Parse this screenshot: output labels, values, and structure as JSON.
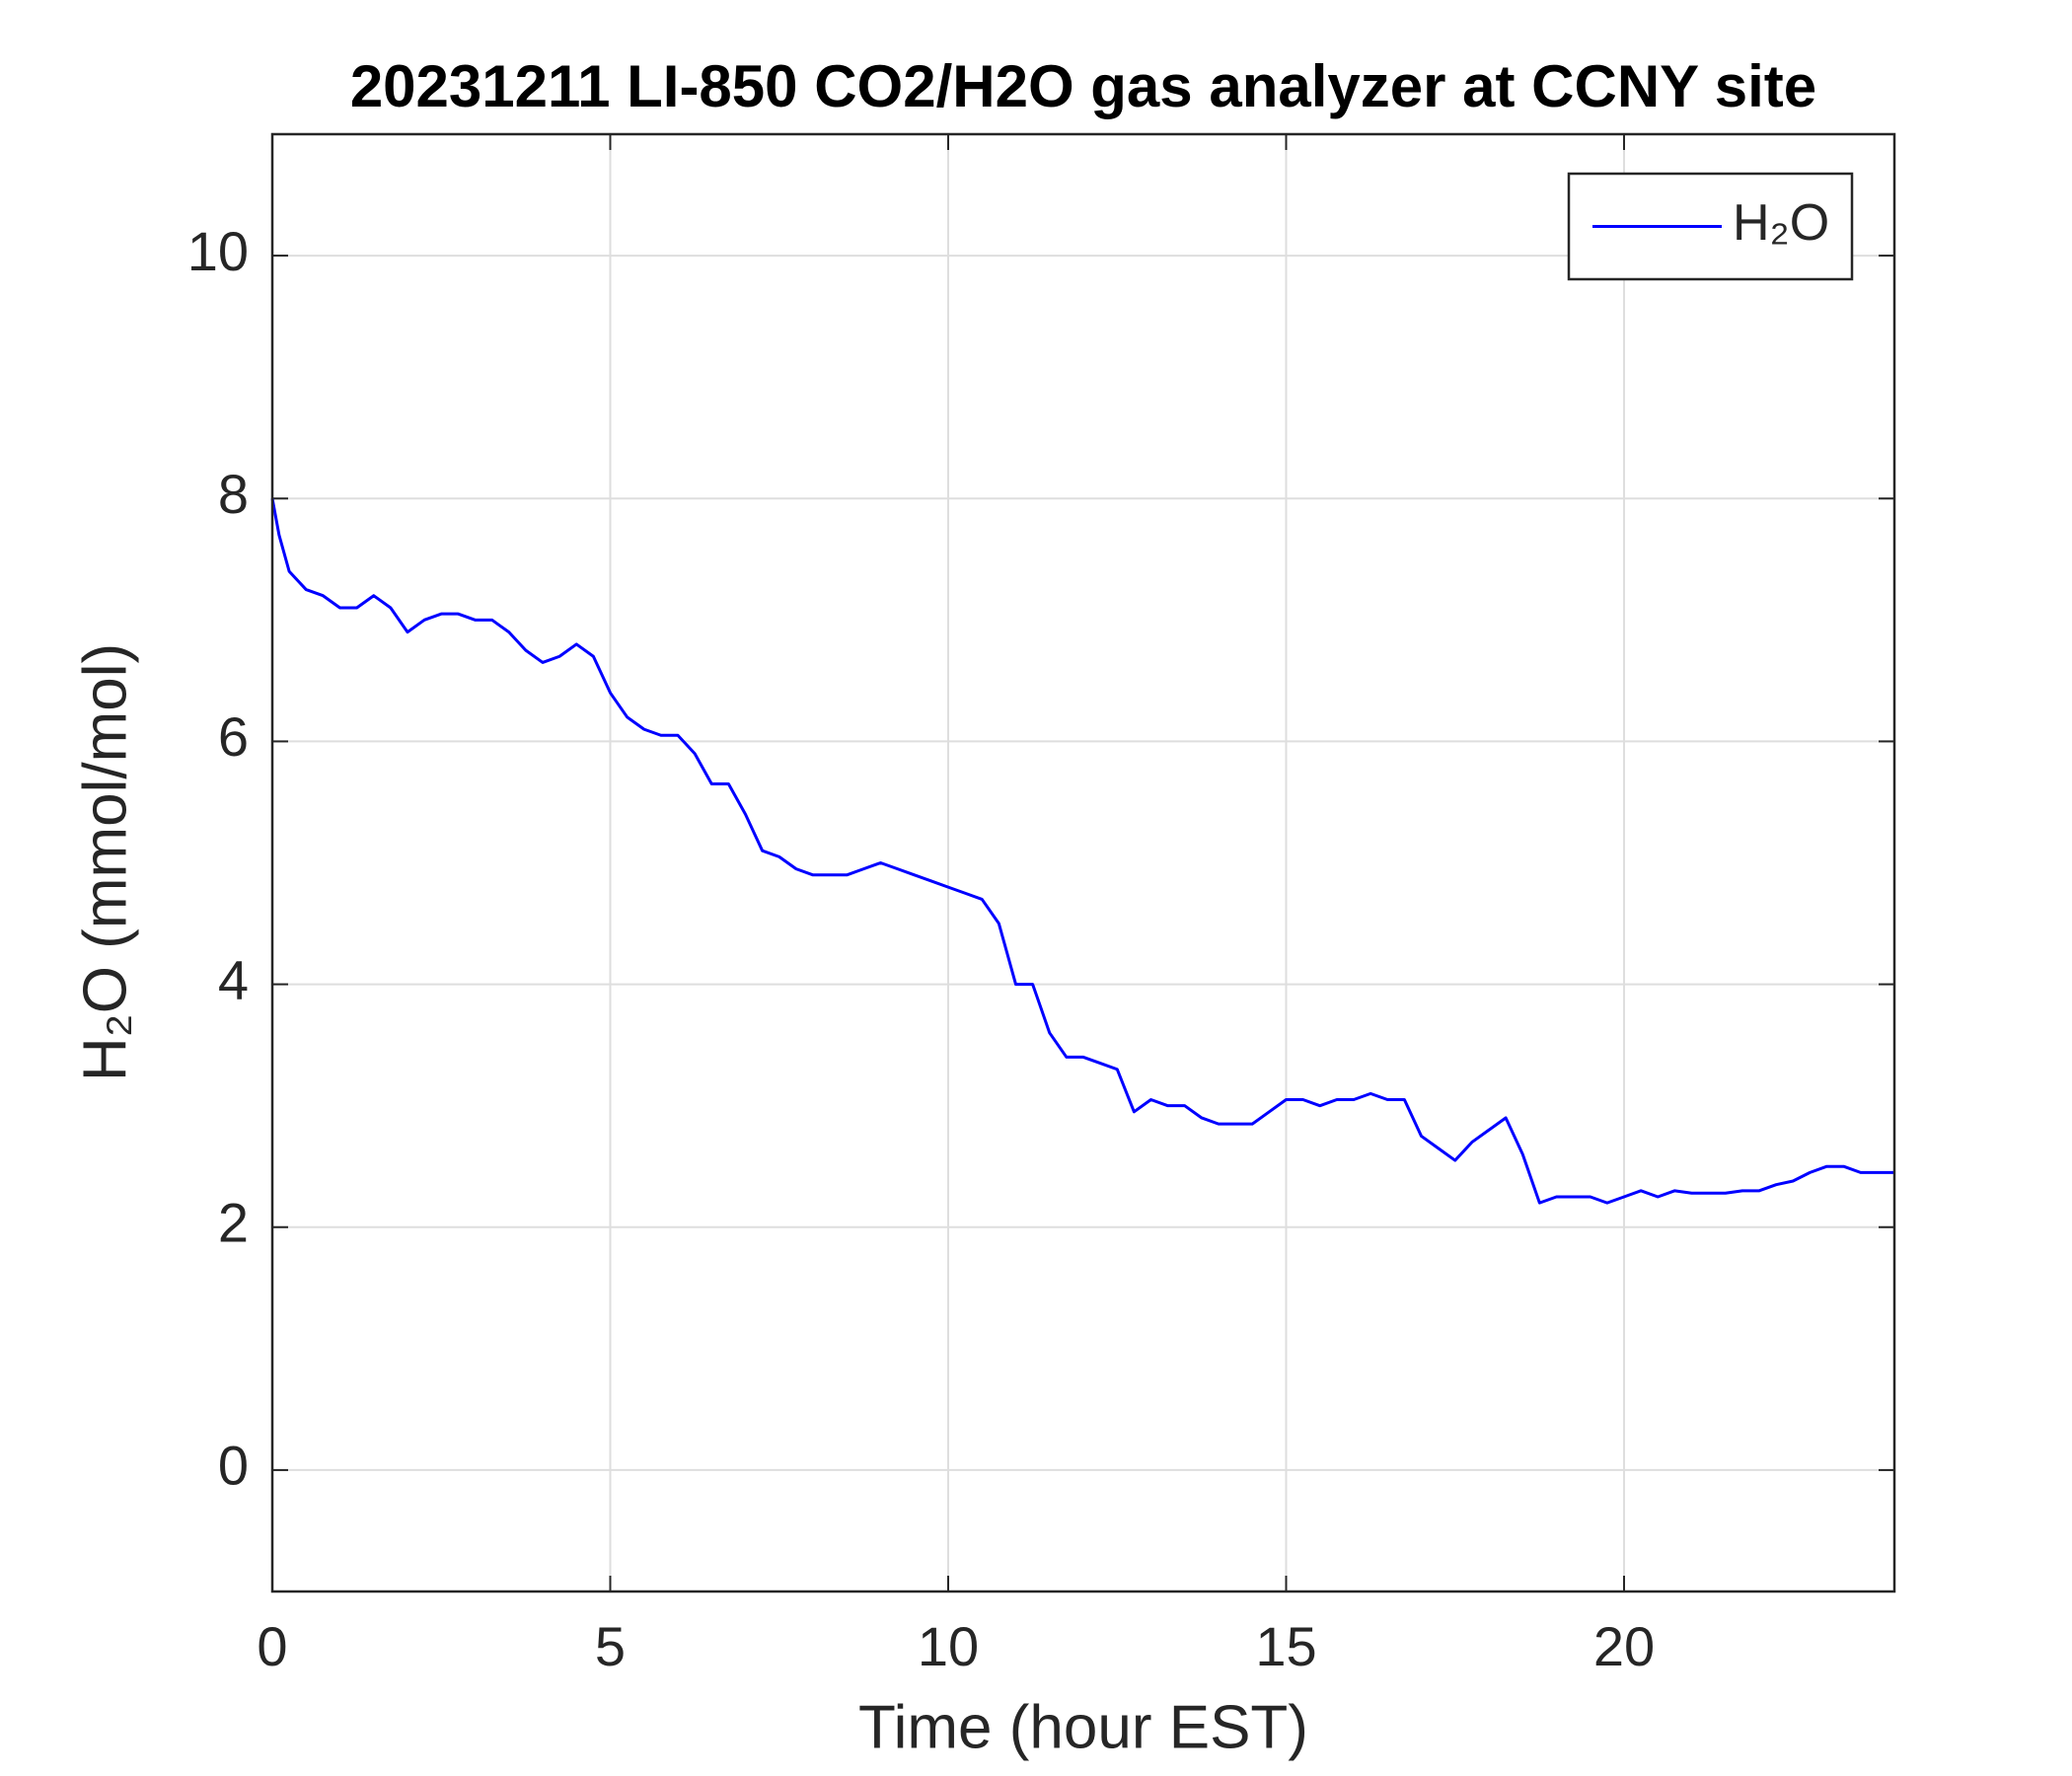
{
  "chart_data": {
    "type": "line",
    "title": "20231211 LI-850 CO2/H2O gas analyzer at CCNY site",
    "xlabel": "Time (hour EST)",
    "ylabel": "H₂O (mmol/mol)",
    "x": [
      0,
      0.1,
      0.25,
      0.5,
      0.75,
      1,
      1.25,
      1.5,
      1.75,
      2,
      2.25,
      2.5,
      2.75,
      3,
      3.25,
      3.5,
      3.75,
      4,
      4.25,
      4.5,
      4.75,
      5,
      5.25,
      5.5,
      5.75,
      6,
      6.25,
      6.5,
      6.75,
      7,
      7.25,
      7.5,
      7.75,
      8,
      8.25,
      8.5,
      8.75,
      9,
      9.25,
      9.5,
      9.75,
      10,
      10.25,
      10.5,
      10.75,
      11,
      11.25,
      11.5,
      11.75,
      12,
      12.25,
      12.5,
      12.75,
      13,
      13.25,
      13.5,
      13.75,
      14,
      14.25,
      14.5,
      14.75,
      15,
      15.25,
      15.5,
      15.75,
      16,
      16.25,
      16.5,
      16.75,
      17,
      17.25,
      17.5,
      17.75,
      18,
      18.25,
      18.5,
      18.75,
      19,
      19.25,
      19.5,
      19.75,
      20,
      20.25,
      20.5,
      20.75,
      21,
      21.25,
      21.5,
      21.75,
      22,
      22.25,
      22.5,
      22.75,
      23,
      23.25,
      23.5,
      23.75,
      24
    ],
    "series": [
      {
        "name": "H₂O",
        "color": "#0000ff",
        "values": [
          8.0,
          7.7,
          7.4,
          7.25,
          7.2,
          7.1,
          7.1,
          7.2,
          7.1,
          6.9,
          7.0,
          7.05,
          7.05,
          7.0,
          7.0,
          6.9,
          6.75,
          6.65,
          6.7,
          6.8,
          6.7,
          6.4,
          6.2,
          6.1,
          6.05,
          6.05,
          5.9,
          5.65,
          5.65,
          5.4,
          5.1,
          5.05,
          4.95,
          4.9,
          4.9,
          4.9,
          4.95,
          5.0,
          4.95,
          4.9,
          4.85,
          4.8,
          4.75,
          4.7,
          4.5,
          4.0,
          4.0,
          3.6,
          3.4,
          3.4,
          3.35,
          3.3,
          2.95,
          3.05,
          3.0,
          3.0,
          2.9,
          2.85,
          2.85,
          2.85,
          2.95,
          3.05,
          3.05,
          3.0,
          3.05,
          3.05,
          3.1,
          3.05,
          3.05,
          2.75,
          2.65,
          2.55,
          2.7,
          2.8,
          2.9,
          2.6,
          2.2,
          2.25,
          2.25,
          2.25,
          2.2,
          2.25,
          2.3,
          2.25,
          2.3,
          2.28,
          2.28,
          2.28,
          2.3,
          2.3,
          2.35,
          2.38,
          2.45,
          2.5,
          2.5,
          2.45,
          2.45,
          2.45
        ]
      }
    ],
    "xlim": [
      0,
      24
    ],
    "xticks": [
      0,
      5,
      10,
      15,
      20
    ],
    "ylim": [
      -1,
      11
    ],
    "yticks": [
      0,
      2,
      4,
      6,
      8,
      10
    ],
    "grid": true,
    "legend": "northeast"
  }
}
